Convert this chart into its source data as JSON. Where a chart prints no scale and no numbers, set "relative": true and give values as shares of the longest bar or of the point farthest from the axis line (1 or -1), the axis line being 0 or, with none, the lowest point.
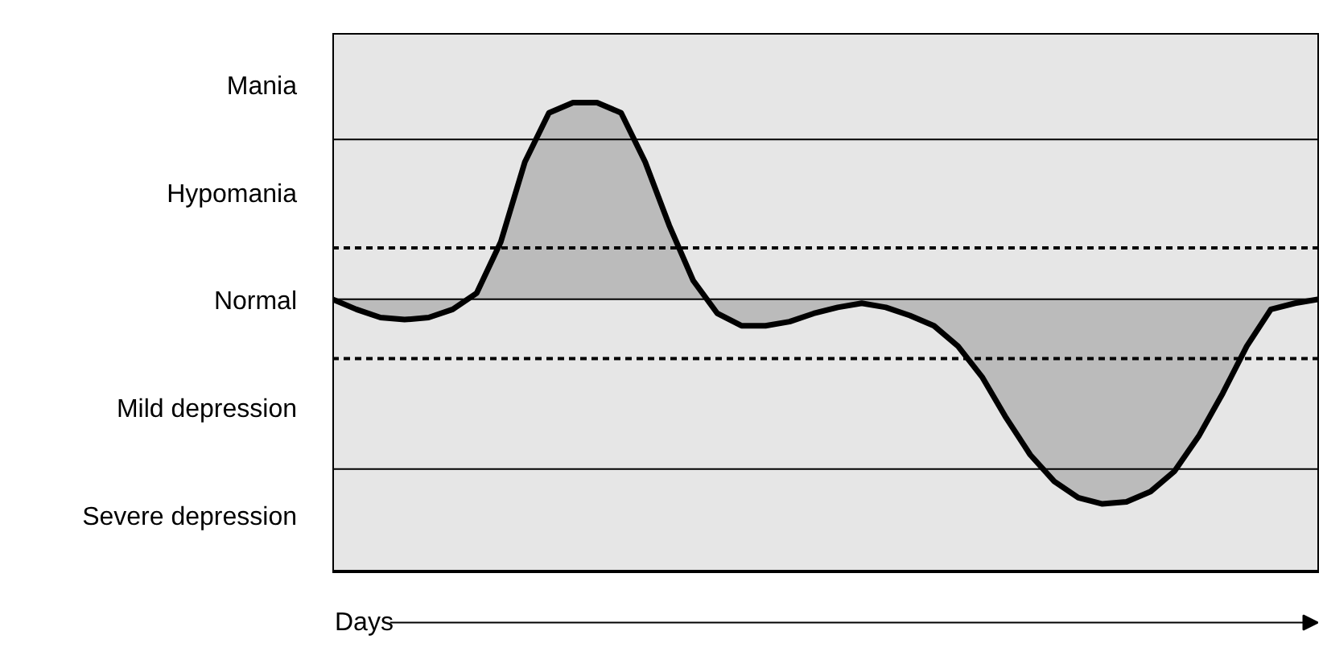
{
  "chart_data": {
    "type": "area",
    "xlabel": "Days",
    "categories": [
      null,
      null,
      null,
      null,
      null,
      null,
      null,
      null,
      null,
      null,
      null,
      null,
      null,
      null,
      null,
      null,
      null,
      null,
      null,
      null,
      null,
      null,
      null,
      null,
      null,
      null,
      null,
      null,
      null,
      null,
      null,
      null,
      null,
      null,
      null,
      null,
      null,
      null,
      null,
      null,
      null,
      null
    ],
    "series": [
      {
        "color": "#000000",
        "values": [
          0,
          -0.05,
          -0.09,
          -0.1,
          -0.09,
          -0.05,
          0.03,
          0.28,
          0.67,
          0.91,
          0.96,
          0.96,
          0.91,
          0.67,
          0.36,
          0.09,
          -0.07,
          -0.13,
          -0.13,
          -0.11,
          -0.07,
          -0.04,
          -0.02,
          -0.04,
          -0.08,
          -0.13,
          -0.23,
          -0.38,
          -0.58,
          -0.76,
          -0.89,
          -0.97,
          -1,
          -0.99,
          -0.94,
          -0.84,
          -0.67,
          -0.46,
          -0.23,
          -0.05,
          -0.02,
          0
        ]
      }
    ],
    "relative": true,
    "annotations": [
      "Mania",
      "Hypomania",
      "Normal",
      "Mild depression",
      "Severe depression"
    ],
    "ref_lines": [
      {
        "axis": "y",
        "value": 0.78,
        "label": null,
        "line_style": "solid",
        "color": "#000000"
      },
      {
        "axis": "y",
        "value": 0.25,
        "label": null,
        "line_style": "dashed",
        "color": "#000000"
      },
      {
        "axis": "y",
        "value": -0.29,
        "label": null,
        "line_style": "dashed",
        "color": "#000000"
      },
      {
        "axis": "y",
        "value": -0.83,
        "label": null,
        "line_style": "solid",
        "color": "#000000"
      }
    ],
    "grid": false
  }
}
